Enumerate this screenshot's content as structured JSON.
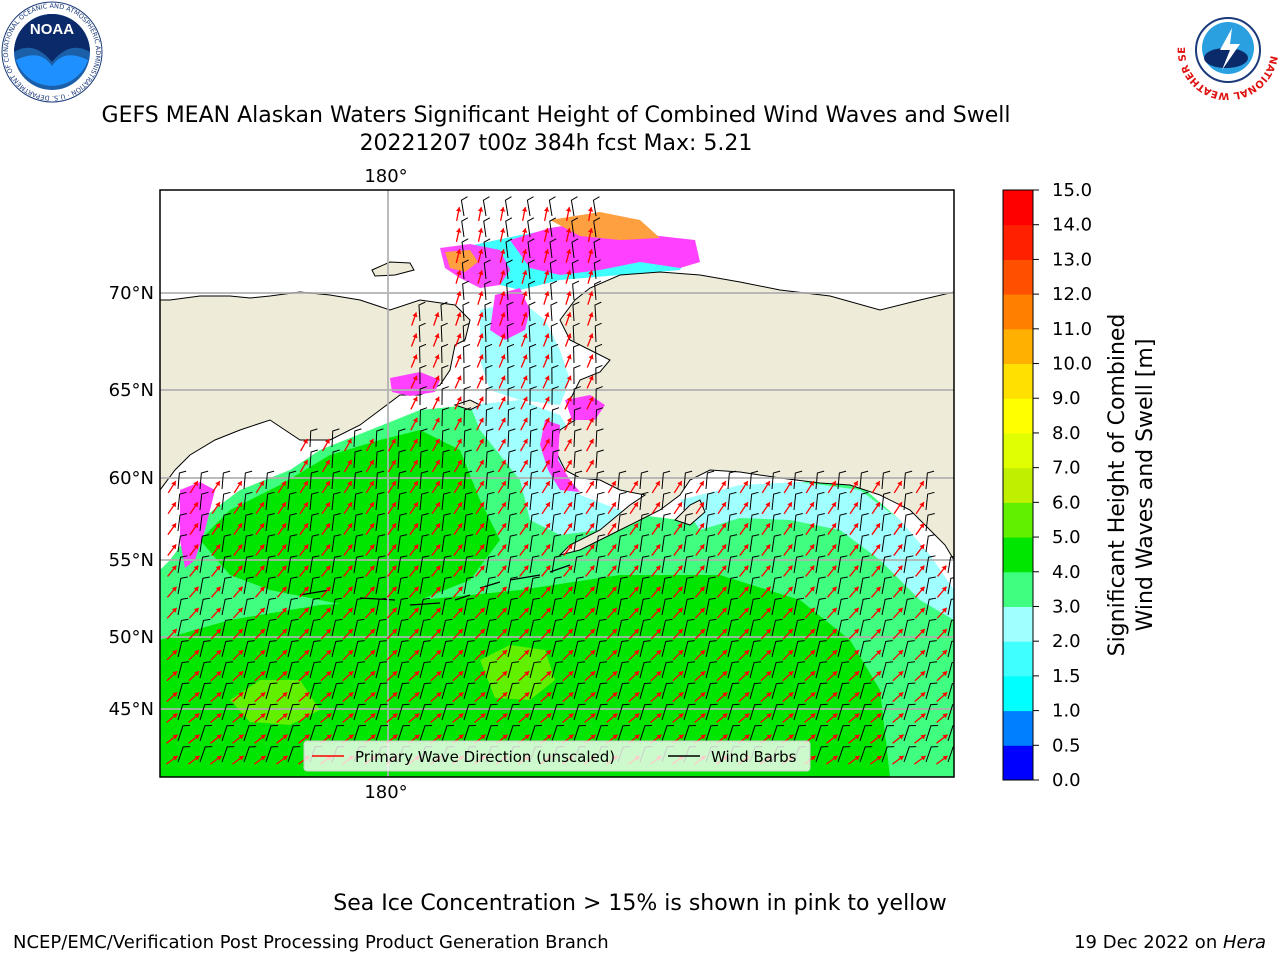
{
  "title_line1": "GEFS MEAN Alaskan Waters Significant Height of Combined Wind Waves and Swell",
  "title_line2": "20221207 t00z 384h fcst   Max: 5.21",
  "lon_label_top": "180°",
  "lon_label_bottom": "180°",
  "lat_labels": [
    "70°N",
    "65°N",
    "60°N",
    "55°N",
    "50°N",
    "45°N"
  ],
  "legend": {
    "wave_dir_label": "Primary Wave Direction (unscaled)",
    "wind_barbs_label": "Wind Barbs",
    "wave_dir_color": "#ff0000",
    "wind_barbs_color": "#000000"
  },
  "colorbar": {
    "label_line1": "Significant Height of Combined",
    "label_line2": "Wind Waves and Swell [m]",
    "ticks": [
      "0.0",
      "0.5",
      "1.0",
      "1.5",
      "2.0",
      "3.0",
      "4.0",
      "5.0",
      "6.0",
      "7.0",
      "8.0",
      "9.0",
      "10.0",
      "11.0",
      "12.0",
      "13.0",
      "14.0",
      "15.0"
    ],
    "colors": [
      "#0000ff",
      "#0080ff",
      "#00ffff",
      "#40ffff",
      "#a0ffff",
      "#40ff80",
      "#00e600",
      "#60f000",
      "#c0f000",
      "#e0ff00",
      "#ffff00",
      "#ffe000",
      "#ffb000",
      "#ff8000",
      "#ff5000",
      "#ff2000",
      "#ff0000"
    ]
  },
  "ice_note": "Sea Ice Concentration > 15% is shown in pink to yellow",
  "footer": {
    "left": "NCEP/EMC/Verification Post Processing Product Generation Branch",
    "right_prefix": "19 Dec 2022 on ",
    "right_host": "Hera"
  },
  "logos": {
    "noaa_text": "NOAA",
    "noaa_ring": "NATIONAL OCEANIC AND ATMOSPHERIC ADMINISTRATION · U.S. DEPARTMENT OF COMMERCE",
    "nws_ring": "NATIONAL WEATHER SERVICE"
  },
  "colors": {
    "land": "#eeecd9",
    "ocean_high": "#00e600",
    "ocean_mid": "#40ff80",
    "ocean_low": "#a0ffff",
    "ice_pink": "#ff40ff",
    "ice_orange": "#ffa040",
    "grid": "#b0b0b0"
  }
}
